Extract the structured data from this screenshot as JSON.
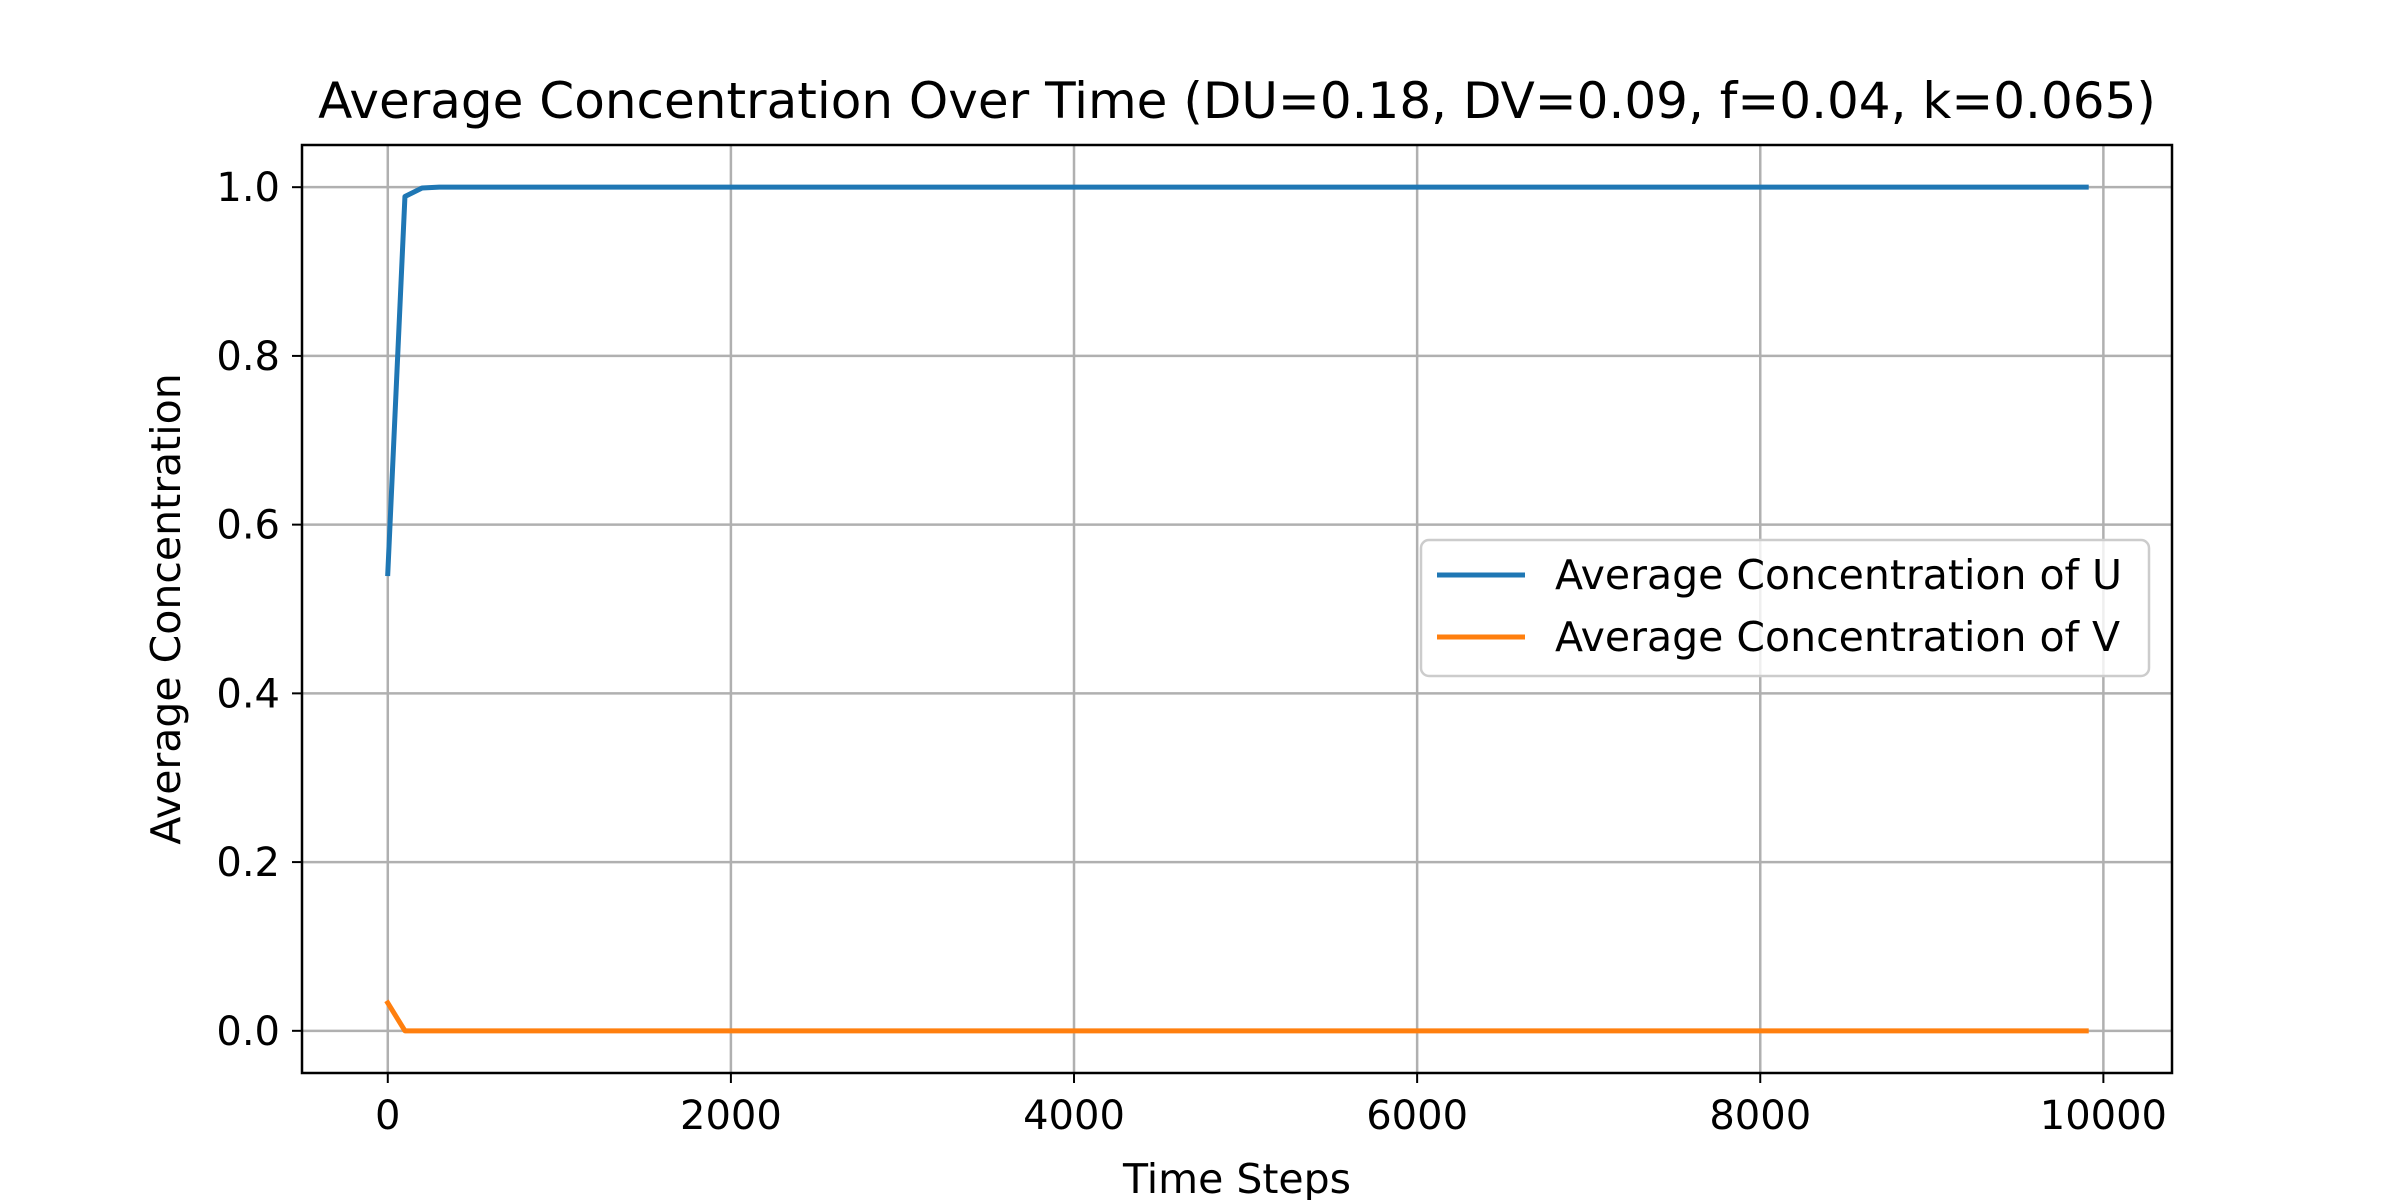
{
  "chart_data": {
    "type": "line",
    "title": "Average Concentration Over Time (DU=0.18, DV=0.09, f=0.04, k=0.065)",
    "xlabel": "Time Steps",
    "ylabel": "Average Concentration",
    "xlim": [
      -500,
      10400
    ],
    "ylim": [
      -0.05,
      1.05
    ],
    "xticks": [
      0,
      2000,
      4000,
      6000,
      8000,
      10000
    ],
    "xtick_labels": [
      "0",
      "2000",
      "4000",
      "6000",
      "8000",
      "10000"
    ],
    "yticks": [
      0.0,
      0.2,
      0.4,
      0.6,
      0.8,
      1.0
    ],
    "ytick_labels": [
      "0.0",
      "0.2",
      "0.4",
      "0.6",
      "0.8",
      "1.0"
    ],
    "grid": true,
    "legend_position": "center-right",
    "series": [
      {
        "name": "Average Concentration of U",
        "color": "#1f77b4",
        "x": [
          0,
          100,
          200,
          300,
          9900
        ],
        "y": [
          0.542,
          0.989,
          0.999,
          1.0,
          1.0
        ]
      },
      {
        "name": "Average Concentration of V",
        "color": "#ff7f0e",
        "x": [
          0,
          100,
          200,
          9900
        ],
        "y": [
          0.033,
          0.0,
          0.0,
          0.0
        ]
      }
    ]
  }
}
